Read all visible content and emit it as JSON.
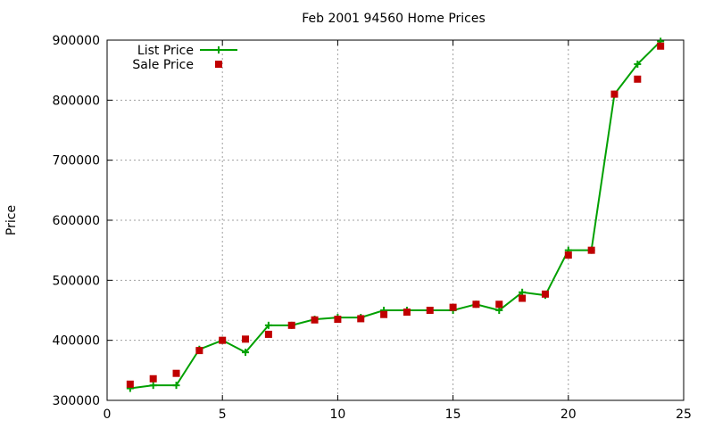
{
  "chart_data": {
    "type": "line",
    "title": "Feb 2001 94560 Home Prices",
    "xlabel": "",
    "ylabel": "Price",
    "xlim": [
      0,
      25
    ],
    "ylim": [
      300000,
      900000
    ],
    "xticks": [
      0,
      5,
      10,
      15,
      20,
      25
    ],
    "yticks": [
      300000,
      400000,
      500000,
      600000,
      700000,
      800000,
      900000
    ],
    "grid": true,
    "legend_position": "top-left",
    "series": [
      {
        "name": "List Price",
        "style": "line-with-plus-markers",
        "color": "#00a000",
        "x": [
          1,
          2,
          3,
          4,
          5,
          6,
          7,
          8,
          9,
          10,
          11,
          12,
          13,
          14,
          15,
          16,
          17,
          18,
          19,
          20,
          21,
          22,
          23,
          24
        ],
        "y": [
          320000,
          325000,
          325000,
          385000,
          400000,
          380000,
          425000,
          425000,
          435000,
          438000,
          438000,
          450000,
          450000,
          450000,
          450000,
          460000,
          450000,
          480000,
          475000,
          550000,
          550000,
          810000,
          860000,
          898000
        ]
      },
      {
        "name": "Sale Price",
        "style": "square-markers",
        "color": "#c00000",
        "x": [
          1,
          2,
          3,
          4,
          5,
          6,
          7,
          8,
          9,
          10,
          11,
          12,
          13,
          14,
          15,
          16,
          17,
          18,
          19,
          20,
          21,
          22,
          23,
          24
        ],
        "y": [
          327000,
          336000,
          345000,
          383000,
          400000,
          402000,
          410000,
          425000,
          434000,
          435000,
          436000,
          443000,
          447000,
          450000,
          455000,
          460000,
          460000,
          470000,
          477000,
          542000,
          550000,
          810000,
          835000,
          890000
        ]
      }
    ]
  }
}
